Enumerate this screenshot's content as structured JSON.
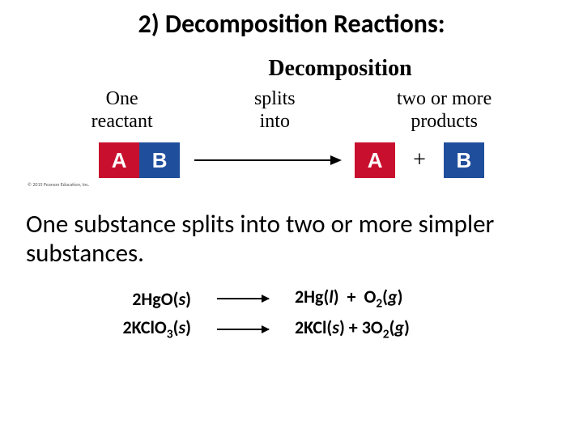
{
  "title": "2) Decomposition Reactions:",
  "diagram": {
    "header": "Decomposition",
    "words": {
      "left_top": "One",
      "left_bottom": "reactant",
      "mid_top": "splits",
      "mid_bottom": "into",
      "right_top": "two or more",
      "right_bottom": "products"
    },
    "blocks": {
      "A": "A",
      "B": "B",
      "plus": "+",
      "colors": {
        "A_bg": "#c8102e",
        "B_bg": "#1f4e9c",
        "text": "#ffffff"
      }
    },
    "copyright": "© 2015 Pearson Education, Inc."
  },
  "description": "One substance splits into two or more simpler substances.",
  "equations": {
    "eq1": {
      "left_plain": "2HgO(s)",
      "right_plain": "2Hg(l) + O2(g)"
    },
    "eq2": {
      "left_plain": "2KClO3(s)",
      "right_plain": "2KCl(s) + 3O2(g)"
    }
  },
  "style": {
    "title_fontsize": 32,
    "desc_fontsize": 31,
    "eq_fontsize": 22,
    "background_color": "#ffffff",
    "text_color": "#000000"
  }
}
